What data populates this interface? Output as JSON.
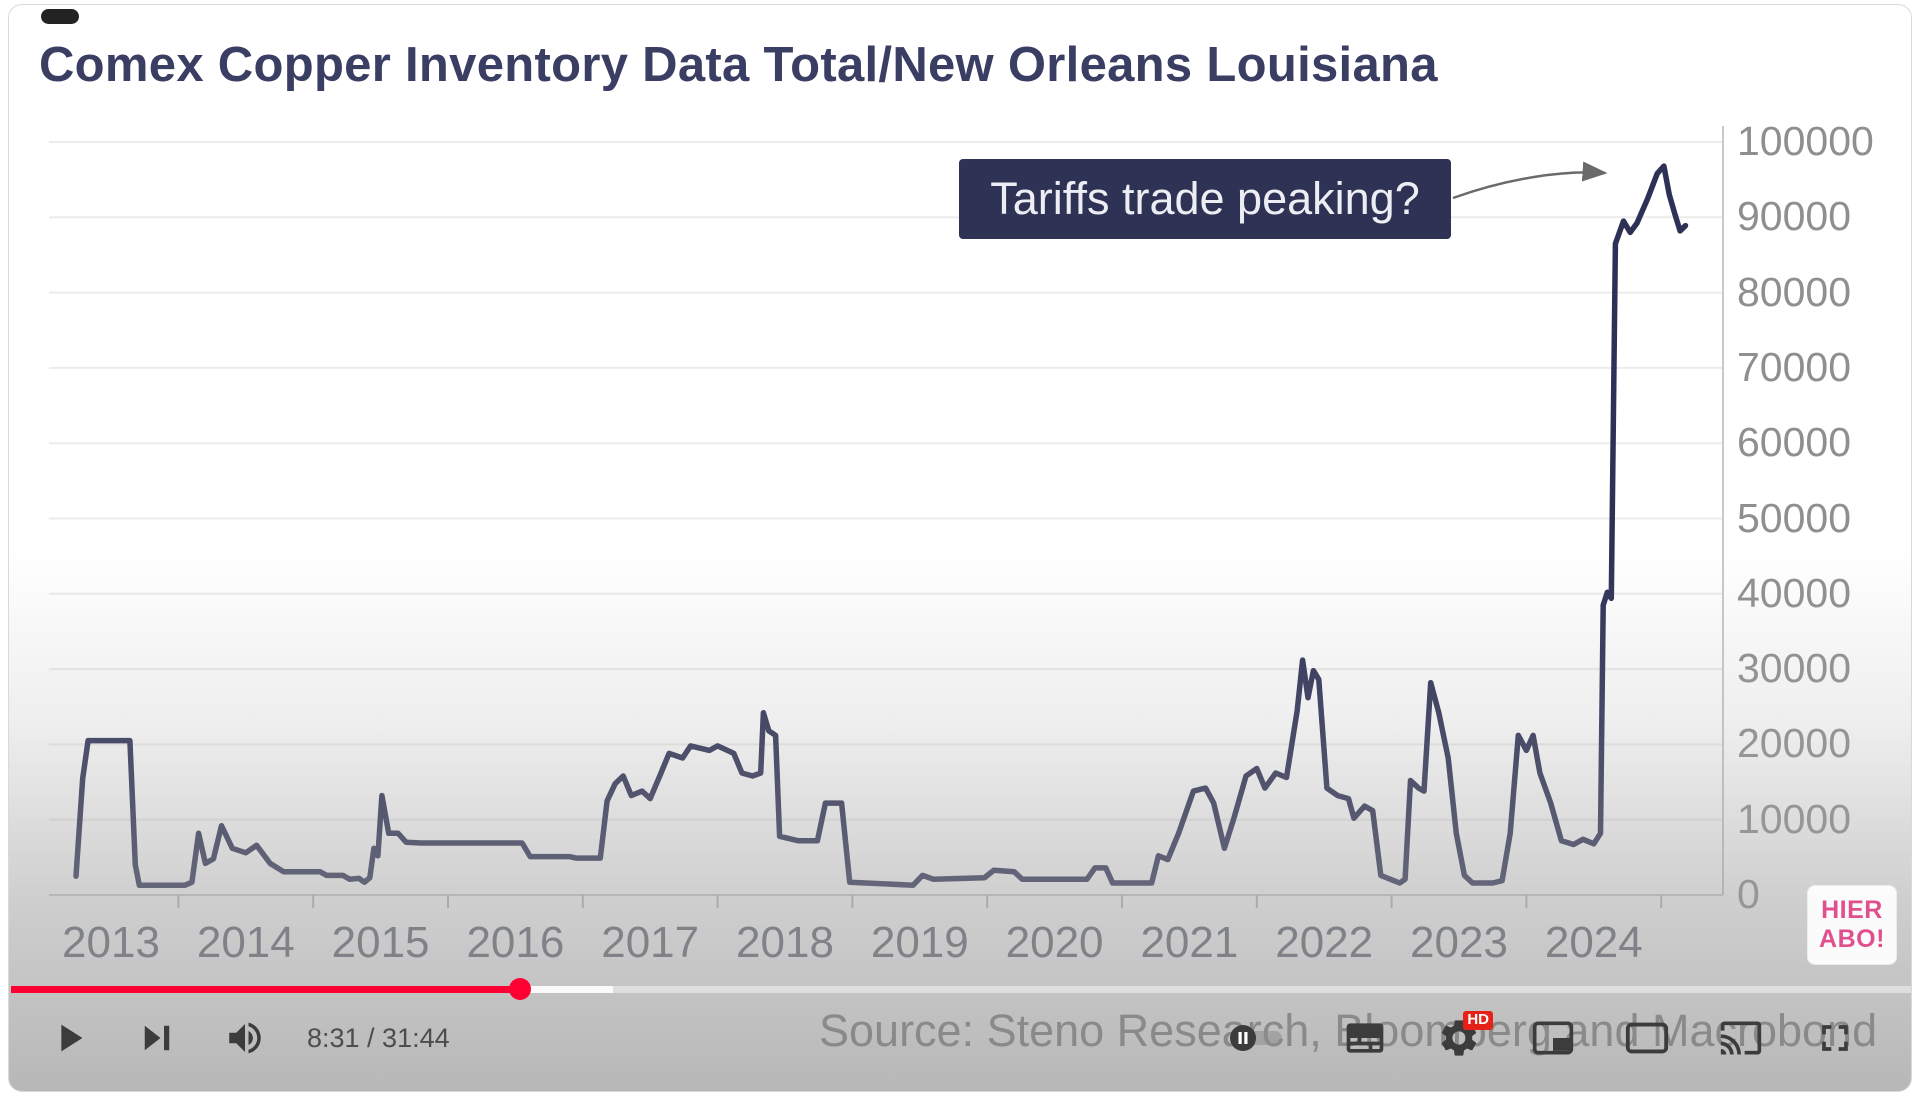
{
  "title": "Comex Copper Inventory Data Total/New Orleans Louisiana",
  "annotation": {
    "text": "Tariffs trade peaking?"
  },
  "source": "Source: Steno Research, Bloomberg and Macrobond",
  "watermark": {
    "line1": "HIER",
    "line2": "ABO!",
    "color": "#e0508f"
  },
  "player": {
    "time_display": "8:31 / 31:44",
    "progress_percent": 26.8,
    "buffered_percent": 31.7,
    "settings_badge": "HD",
    "accent_color": "#ff0033",
    "icons": [
      "play-icon",
      "next-icon",
      "volume-icon",
      "autoplay-toggle-icon",
      "subtitles-icon",
      "settings-icon",
      "miniplayer-icon",
      "theater-mode-icon",
      "cast-icon",
      "fullscreen-icon"
    ]
  },
  "chart_data": {
    "type": "line",
    "title": "Comex Copper Inventory Data Total/New Orleans Louisiana",
    "xlabel": "",
    "ylabel": "",
    "xlim": [
      2012.7,
      2024.75
    ],
    "ylim": [
      0,
      100000
    ],
    "grid": "horizontal",
    "legend": "none",
    "line_color": "#2e3156",
    "annotations": [
      "Tariffs trade peaking?"
    ],
    "x_ticks": [
      2013,
      2014,
      2015,
      2016,
      2017,
      2018,
      2019,
      2020,
      2021,
      2022,
      2023,
      2024
    ],
    "y_ticks": [
      0,
      10000,
      20000,
      30000,
      40000,
      50000,
      60000,
      70000,
      80000,
      90000,
      100000
    ],
    "series": [
      {
        "name": "Comex copper inventory total / New Orleans Louisiana",
        "points": [
          [
            2012.74,
            2500
          ],
          [
            2012.79,
            15500
          ],
          [
            2012.83,
            20500
          ],
          [
            2013.14,
            20500
          ],
          [
            2013.18,
            4000
          ],
          [
            2013.21,
            1300
          ],
          [
            2013.55,
            1300
          ],
          [
            2013.6,
            1700
          ],
          [
            2013.65,
            8200
          ],
          [
            2013.7,
            4200
          ],
          [
            2013.76,
            4800
          ],
          [
            2013.82,
            9200
          ],
          [
            2013.9,
            6200
          ],
          [
            2014.0,
            5600
          ],
          [
            2014.08,
            6600
          ],
          [
            2014.18,
            4200
          ],
          [
            2014.28,
            3100
          ],
          [
            2014.55,
            3100
          ],
          [
            2014.6,
            2600
          ],
          [
            2014.72,
            2600
          ],
          [
            2014.77,
            2100
          ],
          [
            2014.84,
            2200
          ],
          [
            2014.88,
            1700
          ],
          [
            2014.92,
            2300
          ],
          [
            2014.95,
            6200
          ],
          [
            2014.98,
            5200
          ],
          [
            2015.01,
            13200
          ],
          [
            2015.06,
            8200
          ],
          [
            2015.13,
            8200
          ],
          [
            2015.19,
            7000
          ],
          [
            2015.3,
            6900
          ],
          [
            2016.05,
            6900
          ],
          [
            2016.11,
            5100
          ],
          [
            2016.4,
            5100
          ],
          [
            2016.45,
            4900
          ],
          [
            2016.63,
            4900
          ],
          [
            2016.68,
            12500
          ],
          [
            2016.74,
            14800
          ],
          [
            2016.8,
            15800
          ],
          [
            2016.86,
            13200
          ],
          [
            2016.94,
            13800
          ],
          [
            2017.0,
            12800
          ],
          [
            2017.08,
            16200
          ],
          [
            2017.14,
            18800
          ],
          [
            2017.24,
            18200
          ],
          [
            2017.3,
            19800
          ],
          [
            2017.44,
            19200
          ],
          [
            2017.5,
            19800
          ],
          [
            2017.62,
            18800
          ],
          [
            2017.68,
            16200
          ],
          [
            2017.76,
            15800
          ],
          [
            2017.82,
            16200
          ],
          [
            2017.84,
            24200
          ],
          [
            2017.88,
            21800
          ],
          [
            2017.93,
            21200
          ],
          [
            2017.96,
            7800
          ],
          [
            2018.1,
            7200
          ],
          [
            2018.24,
            7200
          ],
          [
            2018.3,
            12200
          ],
          [
            2018.42,
            12200
          ],
          [
            2018.48,
            1700
          ],
          [
            2018.95,
            1300
          ],
          [
            2019.02,
            2600
          ],
          [
            2019.1,
            2100
          ],
          [
            2019.48,
            2300
          ],
          [
            2019.55,
            3300
          ],
          [
            2019.7,
            3100
          ],
          [
            2019.76,
            2100
          ],
          [
            2020.24,
            2100
          ],
          [
            2020.3,
            3600
          ],
          [
            2020.38,
            3600
          ],
          [
            2020.43,
            1600
          ],
          [
            2020.72,
            1600
          ],
          [
            2020.77,
            5200
          ],
          [
            2020.84,
            4700
          ],
          [
            2020.92,
            8200
          ],
          [
            2021.03,
            13800
          ],
          [
            2021.12,
            14200
          ],
          [
            2021.18,
            12200
          ],
          [
            2021.26,
            6200
          ],
          [
            2021.33,
            10200
          ],
          [
            2021.42,
            15800
          ],
          [
            2021.5,
            16800
          ],
          [
            2021.56,
            14200
          ],
          [
            2021.64,
            16200
          ],
          [
            2021.72,
            15600
          ],
          [
            2021.8,
            24500
          ],
          [
            2021.84,
            31200
          ],
          [
            2021.88,
            26200
          ],
          [
            2021.92,
            29800
          ],
          [
            2021.96,
            28600
          ],
          [
            2022.02,
            14200
          ],
          [
            2022.1,
            13200
          ],
          [
            2022.18,
            12800
          ],
          [
            2022.22,
            10200
          ],
          [
            2022.3,
            11800
          ],
          [
            2022.36,
            11200
          ],
          [
            2022.42,
            2600
          ],
          [
            2022.56,
            1600
          ],
          [
            2022.6,
            2100
          ],
          [
            2022.64,
            15200
          ],
          [
            2022.7,
            14200
          ],
          [
            2022.74,
            13800
          ],
          [
            2022.79,
            28200
          ],
          [
            2022.85,
            24200
          ],
          [
            2022.92,
            18200
          ],
          [
            2022.98,
            8200
          ],
          [
            2023.04,
            2600
          ],
          [
            2023.1,
            1600
          ],
          [
            2023.25,
            1600
          ],
          [
            2023.32,
            1900
          ],
          [
            2023.38,
            8200
          ],
          [
            2023.44,
            21200
          ],
          [
            2023.5,
            19200
          ],
          [
            2023.55,
            21200
          ],
          [
            2023.6,
            16200
          ],
          [
            2023.68,
            12200
          ],
          [
            2023.76,
            7200
          ],
          [
            2023.85,
            6700
          ],
          [
            2023.92,
            7400
          ],
          [
            2024.0,
            6800
          ],
          [
            2024.05,
            8200
          ],
          [
            2024.07,
            38500
          ],
          [
            2024.1,
            40200
          ],
          [
            2024.13,
            39400
          ],
          [
            2024.16,
            86500
          ],
          [
            2024.22,
            89500
          ],
          [
            2024.27,
            88000
          ],
          [
            2024.32,
            89200
          ],
          [
            2024.4,
            92500
          ],
          [
            2024.47,
            95800
          ],
          [
            2024.52,
            96800
          ],
          [
            2024.56,
            93000
          ],
          [
            2024.6,
            90500
          ],
          [
            2024.64,
            88200
          ],
          [
            2024.68,
            88900
          ]
        ]
      }
    ]
  }
}
